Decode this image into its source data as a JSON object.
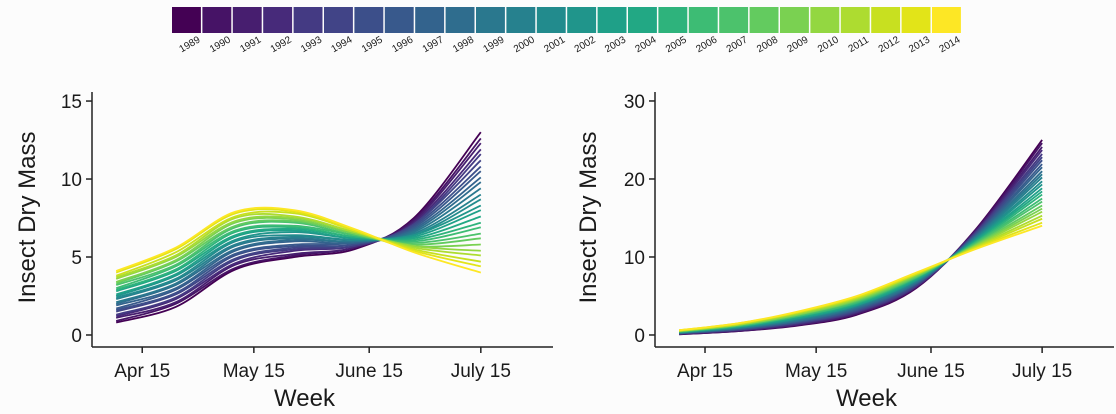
{
  "chart_data": [
    {
      "type": "line",
      "xlabel": "Week",
      "ylabel": "Insect Dry Mass",
      "x": [
        98,
        114,
        130,
        146,
        162,
        178,
        196
      ],
      "xlim": [
        91.5,
        215.4
      ],
      "ylim": [
        -0.77,
        15.58
      ],
      "xticks": [
        {
          "value": 105,
          "label": "Apr 15"
        },
        {
          "value": 135,
          "label": "May 15"
        },
        {
          "value": 166,
          "label": "June 15"
        },
        {
          "value": 196,
          "label": "July 15"
        }
      ],
      "yticks": [
        0,
        5,
        10,
        15
      ],
      "series": [
        {
          "name": "1989",
          "color": "#440154",
          "values": [
            0.8,
            1.8,
            4.2,
            5.0,
            5.5,
            7.5,
            13.0
          ]
        },
        {
          "name": "1990",
          "color": "#461366",
          "values": [
            0.9,
            2.0,
            4.3,
            5.1,
            5.6,
            7.4,
            12.6
          ]
        },
        {
          "name": "1991",
          "color": "#471e6f",
          "values": [
            1.1,
            2.1,
            4.5,
            5.2,
            5.6,
            7.3,
            12.3
          ]
        },
        {
          "name": "1992",
          "color": "#472a7a",
          "values": [
            1.2,
            2.3,
            4.6,
            5.4,
            5.7,
            7.2,
            11.9
          ]
        },
        {
          "name": "1993",
          "color": "#443a83",
          "values": [
            1.3,
            2.4,
            4.8,
            5.5,
            5.7,
            7.1,
            11.6
          ]
        },
        {
          "name": "1994",
          "color": "#414487",
          "values": [
            1.5,
            2.6,
            4.9,
            5.6,
            5.8,
            7.1,
            11.2
          ]
        },
        {
          "name": "1995",
          "color": "#3c4f8a",
          "values": [
            1.6,
            2.7,
            5.1,
            5.7,
            5.8,
            7.0,
            10.8
          ]
        },
        {
          "name": "1996",
          "color": "#38598c",
          "values": [
            1.7,
            2.9,
            5.2,
            5.8,
            5.9,
            6.9,
            10.5
          ]
        },
        {
          "name": "1997",
          "color": "#33638d",
          "values": [
            1.9,
            3.0,
            5.4,
            6.0,
            5.9,
            6.8,
            10.1
          ]
        },
        {
          "name": "1998",
          "color": "#2f6d8e",
          "values": [
            2.0,
            3.2,
            5.5,
            6.1,
            6.0,
            6.7,
            9.8
          ]
        },
        {
          "name": "1999",
          "color": "#2a788e",
          "values": [
            2.1,
            3.3,
            5.7,
            6.2,
            6.0,
            6.6,
            9.4
          ]
        },
        {
          "name": "2000",
          "color": "#26818e",
          "values": [
            2.3,
            3.5,
            5.8,
            6.3,
            6.1,
            6.5,
            9.0
          ]
        },
        {
          "name": "2001",
          "color": "#228b8d",
          "values": [
            2.4,
            3.6,
            6.0,
            6.4,
            6.1,
            6.4,
            8.7
          ]
        },
        {
          "name": "2002",
          "color": "#20958b",
          "values": [
            2.5,
            3.8,
            6.1,
            6.6,
            6.2,
            6.4,
            8.3
          ]
        },
        {
          "name": "2003",
          "color": "#1fa088",
          "values": [
            2.6,
            3.9,
            6.3,
            6.7,
            6.2,
            6.3,
            8.0
          ]
        },
        {
          "name": "2004",
          "color": "#22a884",
          "values": [
            2.8,
            4.1,
            6.4,
            6.8,
            6.3,
            6.2,
            7.6
          ]
        },
        {
          "name": "2005",
          "color": "#2eb37c",
          "values": [
            2.9,
            4.2,
            6.6,
            6.9,
            6.3,
            6.1,
            7.2
          ]
        },
        {
          "name": "2006",
          "color": "#3dbc74",
          "values": [
            3.0,
            4.4,
            6.7,
            7.0,
            6.4,
            6.0,
            6.9
          ]
        },
        {
          "name": "2007",
          "color": "#4cc26c",
          "values": [
            3.2,
            4.5,
            6.9,
            7.2,
            6.4,
            5.9,
            6.5
          ]
        },
        {
          "name": "2008",
          "color": "#63cb5f",
          "values": [
            3.3,
            4.7,
            7.0,
            7.3,
            6.5,
            5.8,
            6.2
          ]
        },
        {
          "name": "2009",
          "color": "#7ad151",
          "values": [
            3.4,
            4.8,
            7.2,
            7.4,
            6.5,
            5.7,
            5.8
          ]
        },
        {
          "name": "2010",
          "color": "#93d741",
          "values": [
            3.6,
            5.0,
            7.3,
            7.5,
            6.6,
            5.7,
            5.4
          ]
        },
        {
          "name": "2011",
          "color": "#addc30",
          "values": [
            3.7,
            5.1,
            7.5,
            7.6,
            6.6,
            5.6,
            5.1
          ]
        },
        {
          "name": "2012",
          "color": "#c8e020",
          "values": [
            3.8,
            5.3,
            7.6,
            7.8,
            6.7,
            5.5,
            4.7
          ]
        },
        {
          "name": "2013",
          "color": "#e2e418",
          "values": [
            4.0,
            5.5,
            7.8,
            7.9,
            6.7,
            5.4,
            4.4
          ]
        },
        {
          "name": "2014",
          "color": "#fde725",
          "values": [
            4.1,
            5.6,
            7.9,
            8.0,
            6.8,
            5.3,
            4.0
          ]
        }
      ]
    },
    {
      "type": "line",
      "xlabel": "Week",
      "ylabel": "Insect Dry Mass",
      "x": [
        98,
        114,
        130,
        146,
        162,
        178,
        196
      ],
      "xlim": [
        91.5,
        215.4
      ],
      "ylim": [
        -1.54,
        31.15
      ],
      "xticks": [
        {
          "value": 105,
          "label": "Apr 15"
        },
        {
          "value": 135,
          "label": "May 15"
        },
        {
          "value": 166,
          "label": "June 15"
        },
        {
          "value": 196,
          "label": "July 15"
        }
      ],
      "yticks": [
        0,
        10,
        20,
        30
      ],
      "series": [
        {
          "color": "#440154",
          "values": [
            0.1,
            0.5,
            1.2,
            2.6,
            6.0,
            13.5,
            25.0
          ]
        },
        {
          "color": "#461366",
          "values": [
            0.1,
            0.5,
            1.3,
            2.7,
            6.1,
            13.4,
            24.6
          ]
        },
        {
          "color": "#471e6f",
          "values": [
            0.1,
            0.6,
            1.3,
            2.8,
            6.2,
            13.3,
            24.1
          ]
        },
        {
          "color": "#472a7a",
          "values": [
            0.2,
            0.6,
            1.4,
            2.9,
            6.2,
            13.2,
            23.7
          ]
        },
        {
          "color": "#443a83",
          "values": [
            0.2,
            0.7,
            1.5,
            3.0,
            6.3,
            13.1,
            23.2
          ]
        },
        {
          "color": "#414487",
          "values": [
            0.2,
            0.7,
            1.6,
            3.1,
            6.4,
            13.0,
            22.8
          ]
        },
        {
          "color": "#3c4f8a",
          "values": [
            0.2,
            0.7,
            1.6,
            3.2,
            6.5,
            12.9,
            22.4
          ]
        },
        {
          "color": "#38598c",
          "values": [
            0.2,
            0.8,
            1.7,
            3.3,
            6.6,
            12.8,
            21.9
          ]
        },
        {
          "color": "#33638d",
          "values": [
            0.3,
            0.8,
            1.8,
            3.4,
            6.6,
            12.7,
            21.5
          ]
        },
        {
          "color": "#2f6d8e",
          "values": [
            0.3,
            0.9,
            1.8,
            3.5,
            6.7,
            12.6,
            21.0
          ]
        },
        {
          "color": "#2a788e",
          "values": [
            0.3,
            0.9,
            1.9,
            3.6,
            6.8,
            12.5,
            20.6
          ]
        },
        {
          "color": "#26818e",
          "values": [
            0.3,
            0.9,
            2.0,
            3.7,
            6.9,
            12.4,
            20.2
          ]
        },
        {
          "color": "#228b8d",
          "values": [
            0.3,
            1.0,
            2.1,
            3.8,
            7.0,
            12.3,
            19.7
          ]
        },
        {
          "color": "#20958b",
          "values": [
            0.4,
            1.0,
            2.1,
            3.8,
            7.0,
            12.2,
            19.3
          ]
        },
        {
          "color": "#1fa088",
          "values": [
            0.4,
            1.1,
            2.2,
            3.9,
            7.1,
            12.1,
            18.8
          ]
        },
        {
          "color": "#22a884",
          "values": [
            0.4,
            1.1,
            2.3,
            4.0,
            7.2,
            12.0,
            18.4
          ]
        },
        {
          "color": "#2eb37c",
          "values": [
            0.4,
            1.1,
            2.4,
            4.1,
            7.3,
            11.9,
            18.0
          ]
        },
        {
          "color": "#3dbc74",
          "values": [
            0.4,
            1.2,
            2.4,
            4.2,
            7.4,
            11.8,
            17.5
          ]
        },
        {
          "color": "#4cc26c",
          "values": [
            0.5,
            1.2,
            2.5,
            4.3,
            7.4,
            11.7,
            17.1
          ]
        },
        {
          "color": "#63cb5f",
          "values": [
            0.5,
            1.3,
            2.6,
            4.4,
            7.5,
            11.6,
            16.6
          ]
        },
        {
          "color": "#7ad151",
          "values": [
            0.5,
            1.3,
            2.6,
            4.5,
            7.6,
            11.5,
            16.2
          ]
        },
        {
          "color": "#93d741",
          "values": [
            0.5,
            1.3,
            2.7,
            4.6,
            7.7,
            11.4,
            15.8
          ]
        },
        {
          "color": "#addc30",
          "values": [
            0.5,
            1.4,
            2.8,
            4.7,
            7.8,
            11.3,
            15.3
          ]
        },
        {
          "color": "#c8e020",
          "values": [
            0.6,
            1.4,
            2.9,
            4.8,
            7.8,
            11.2,
            14.9
          ]
        },
        {
          "color": "#e2e418",
          "values": [
            0.6,
            1.5,
            2.9,
            4.9,
            7.9,
            11.1,
            14.4
          ]
        },
        {
          "color": "#fde725",
          "values": [
            0.6,
            1.5,
            3.0,
            5.0,
            8.0,
            11.0,
            14.0
          ]
        }
      ]
    }
  ]
}
